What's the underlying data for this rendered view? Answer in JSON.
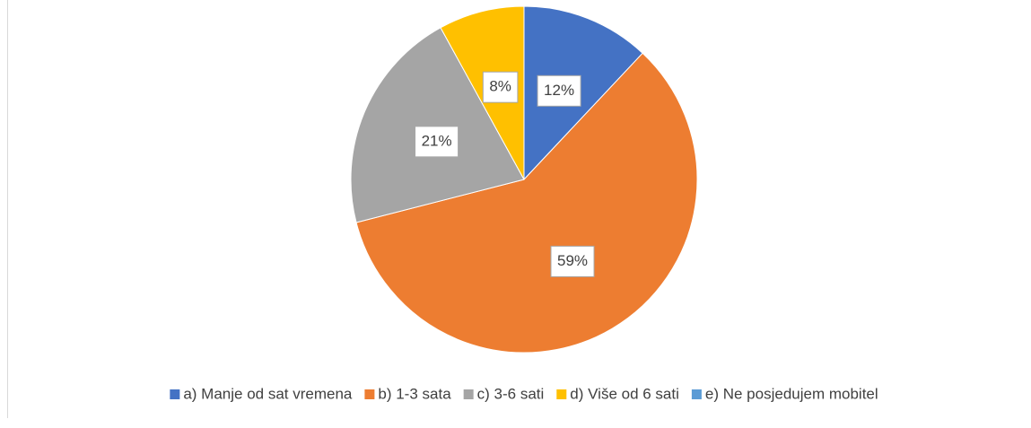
{
  "chart_data": {
    "type": "pie",
    "categories": [
      "a) Manje od sat vremena",
      "b) 1-3 sata",
      "c) 3-6 sati",
      "d) Više od 6 sati",
      "e) Ne posjedujem mobitel"
    ],
    "values": [
      12,
      59,
      21,
      8,
      0
    ],
    "value_labels": [
      "12%",
      "59%",
      "21%",
      "8%",
      null
    ],
    "colors": [
      "#4472c4",
      "#ed7d31",
      "#a5a5a5",
      "#ffc000",
      "#5b9bd5"
    ],
    "legend": "bottom"
  }
}
